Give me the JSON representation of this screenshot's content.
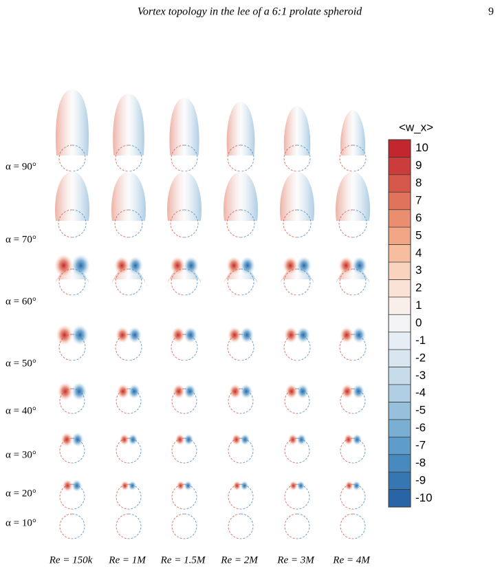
{
  "header": {
    "title": "Vortex topology in the lee of a 6:1 prolate spheroid",
    "page": "9"
  },
  "figure": {
    "rows": [
      "α = 90°",
      "α = 70°",
      "α = 60°",
      "α = 50°",
      "α = 40°",
      "α = 30°",
      "α = 20°",
      "α = 10°"
    ],
    "columns": [
      "Re = 150k",
      "Re = 1M",
      "Re = 1.5M",
      "Re = 2M",
      "Re = 3M",
      "Re = 4M"
    ],
    "colorbar": {
      "title": "<w_x>",
      "levels": [
        10,
        9,
        8,
        7,
        6,
        5,
        4,
        3,
        2,
        1,
        0,
        -1,
        -2,
        -3,
        -4,
        -5,
        -6,
        -7,
        -8,
        -9,
        -10
      ],
      "colors": [
        "#c1272d",
        "#cb3d3a",
        "#d6584a",
        "#e0735c",
        "#ea8e6f",
        "#f2a685",
        "#f6bd9f",
        "#f9d3bd",
        "#fae3d6",
        "#f8eeea",
        "#f4f4f6",
        "#e6edf4",
        "#d8e6f0",
        "#c6dcea",
        "#b0cfe4",
        "#96c0dc",
        "#7aafd3",
        "#5e9cc9",
        "#4889be",
        "#3676b1",
        "#2965a6"
      ]
    }
  }
}
